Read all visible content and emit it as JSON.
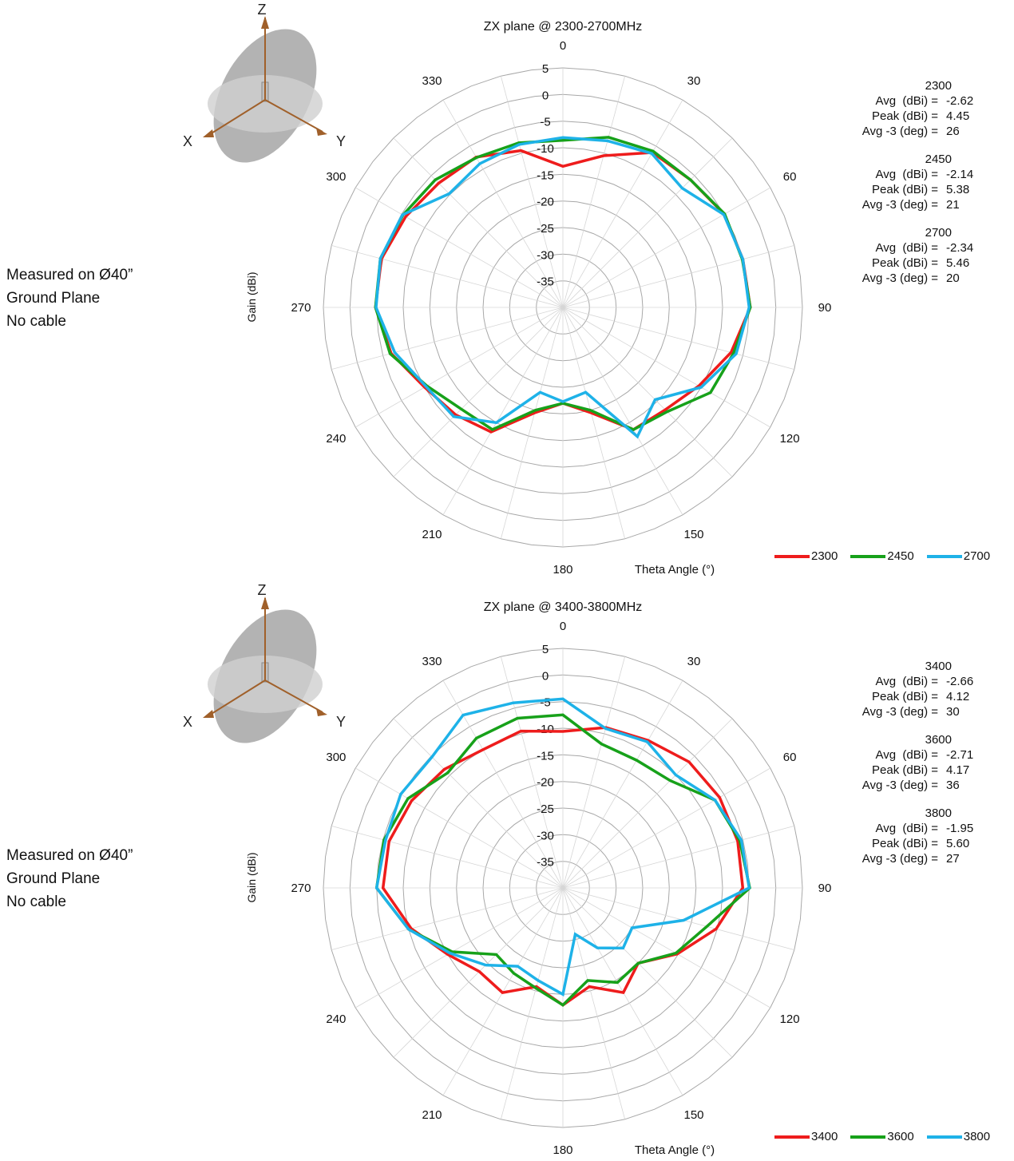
{
  "chart_data": [
    {
      "type": "polar-line",
      "title": "ZX plane @ 2300-2700MHz",
      "xlabel": "Theta Angle (°)",
      "ylabel": "Gain (dBi)",
      "r_range": [
        -40,
        5
      ],
      "r_ticks": [
        "5",
        "0",
        "-5",
        "-10",
        "-15",
        "-20",
        "-25",
        "-30",
        "-35"
      ],
      "angle_labels": [
        "0",
        "30",
        "60",
        "90",
        "120",
        "150",
        "180",
        "210",
        "240",
        "270",
        "300",
        "330"
      ],
      "angles": [
        0,
        15,
        30,
        45,
        60,
        75,
        90,
        105,
        120,
        135,
        150,
        165,
        180,
        195,
        210,
        225,
        240,
        255,
        270,
        285,
        300,
        315,
        330,
        345
      ],
      "grid": true,
      "legend_position": "bottom-right",
      "series": [
        {
          "name": "2300",
          "color": "#ee1c1c",
          "values": [
            -13.5,
            -10.5,
            -6.4,
            -6.1,
            -5.0,
            -5.0,
            -4.8,
            -7.3,
            -10.5,
            -12.8,
            -13.5,
            -19.5,
            -22.0,
            -19.5,
            -13.0,
            -11.5,
            -10.0,
            -6.6,
            -4.8,
            -4.7,
            -5.9,
            -7.0,
            -7.4,
            -9.5
          ]
        },
        {
          "name": "2450",
          "color": "#17a11a",
          "values": [
            -8.6,
            -6.9,
            -6.1,
            -6.1,
            -4.9,
            -5.1,
            -4.8,
            -6.8,
            -8.0,
            -12.3,
            -13.5,
            -20.0,
            -22.0,
            -20.0,
            -13.5,
            -13.0,
            -10.5,
            -6.4,
            -4.8,
            -4.5,
            -5.3,
            -6.1,
            -7.5,
            -8.0
          ]
        },
        {
          "name": "2700",
          "color": "#1eb2e8",
          "values": [
            -8.1,
            -7.6,
            -6.6,
            -8.3,
            -5.1,
            -5.0,
            -5.0,
            -6.3,
            -10.0,
            -15.5,
            -12.0,
            -23.5,
            -22.3,
            -23.5,
            -15.0,
            -11.0,
            -10.3,
            -7.3,
            -4.9,
            -4.5,
            -5.2,
            -9.8,
            -8.8,
            -8.3
          ]
        }
      ],
      "stats": [
        {
          "freq": "2300",
          "avg": "-2.62",
          "peak": "4.45",
          "avg3": "26"
        },
        {
          "freq": "2450",
          "avg": "-2.14",
          "peak": "5.38",
          "avg3": "21"
        },
        {
          "freq": "2700",
          "avg": "-2.34",
          "peak": "5.46",
          "avg3": "20"
        }
      ]
    },
    {
      "type": "polar-line",
      "title": "ZX plane @ 3400-3800MHz",
      "xlabel": "Theta Angle (°)",
      "ylabel": "Gain (dBi)",
      "r_range": [
        -40,
        5
      ],
      "r_ticks": [
        "5",
        "0",
        "-5",
        "-10",
        "-15",
        "-20",
        "-25",
        "-30",
        "-35"
      ],
      "angle_labels": [
        "0",
        "30",
        "60",
        "90",
        "120",
        "150",
        "180",
        "210",
        "240",
        "270",
        "300",
        "330"
      ],
      "angles": [
        0,
        15,
        30,
        45,
        60,
        75,
        90,
        105,
        120,
        135,
        150,
        165,
        180,
        195,
        210,
        225,
        240,
        255,
        270,
        285,
        300,
        315,
        330,
        345
      ],
      "grid": true,
      "legend_position": "bottom-right",
      "series": [
        {
          "name": "3400",
          "color": "#ee1c1c",
          "values": [
            -10.6,
            -8.8,
            -8.0,
            -6.5,
            -6.0,
            -6.0,
            -6.2,
            -10.2,
            -15.2,
            -20.0,
            -17.3,
            -20.8,
            -18.0,
            -20.8,
            -17.3,
            -17.8,
            -15.0,
            -10.5,
            -6.2,
            -6.2,
            -7.2,
            -8.5,
            -10.0,
            -9.5
          ]
        },
        {
          "name": "3600",
          "color": "#17a11a",
          "values": [
            -7.5,
            -12.0,
            -12.3,
            -11.5,
            -7.0,
            -5.6,
            -4.9,
            -12.0,
            -15.5,
            -20.0,
            -19.5,
            -22.0,
            -18.0,
            -20.5,
            -21.5,
            -22.3,
            -16.0,
            -10.0,
            -5.0,
            -5.2,
            -6.4,
            -9.4,
            -7.5,
            -7.0
          ]
        },
        {
          "name": "3800",
          "color": "#1eb2e8",
          "values": [
            -4.5,
            -9.0,
            -8.3,
            -10.0,
            -7.0,
            -5.3,
            -5.0,
            -16.5,
            -25.0,
            -24.0,
            -27.0,
            -31.0,
            -20.0,
            -22.0,
            -23.0,
            -19.5,
            -15.5,
            -10.0,
            -5.0,
            -5.5,
            -4.8,
            -5.2,
            -2.5,
            -4.0
          ]
        }
      ],
      "stats": [
        {
          "freq": "3400",
          "avg": "-2.66",
          "peak": "4.12",
          "avg3": "30"
        },
        {
          "freq": "3600",
          "avg": "-2.71",
          "peak": "4.17",
          "avg3": "36"
        },
        {
          "freq": "3800",
          "avg": "-1.95",
          "peak": "5.60",
          "avg3": "27"
        }
      ]
    }
  ],
  "labels": {
    "avg": "Avg  (dBi) =",
    "peak": "Peak (dBi) =",
    "avg3": "Avg -3 (deg) ="
  },
  "axes_icon": {
    "z": "Z",
    "x": "X",
    "y": "Y"
  },
  "note": {
    "line1": "Measured on Ø40”",
    "line2": "Ground Plane",
    "line3": "No cable"
  }
}
